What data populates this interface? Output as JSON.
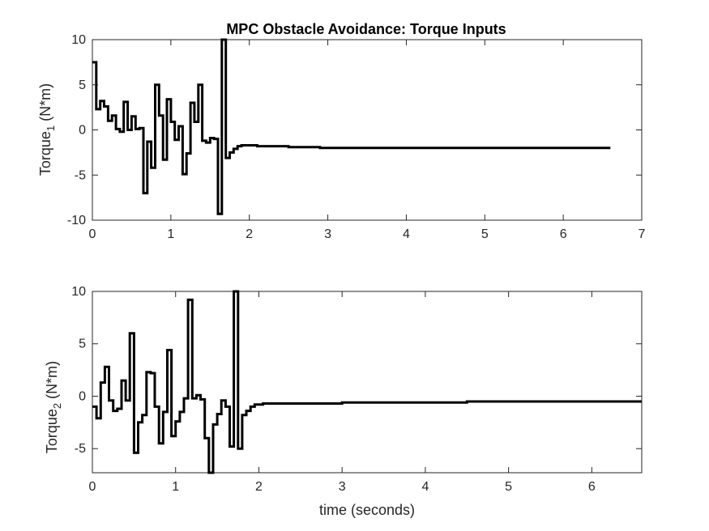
{
  "chart_data": [
    {
      "type": "line",
      "step": true,
      "title": "MPC Obstacle Avoidance: Torque Inputs",
      "ylabel_main": "Torque",
      "ylabel_sub": "1",
      "ylabel_unit": " (N*m)",
      "xlabel": "",
      "xlim": [
        0,
        7
      ],
      "ylim": [
        -10,
        10
      ],
      "xticks": [
        "0",
        "1",
        "2",
        "3",
        "4",
        "5",
        "6",
        "7"
      ],
      "yticks": [
        "-10",
        "-5",
        "0",
        "5",
        "10"
      ],
      "grid": false,
      "series": [
        {
          "color": "#000000",
          "x": [
            0,
            0.05,
            0.1,
            0.15,
            0.2,
            0.25,
            0.3,
            0.35,
            0.4,
            0.45,
            0.5,
            0.55,
            0.6,
            0.65,
            0.7,
            0.75,
            0.8,
            0.85,
            0.9,
            0.95,
            1.0,
            1.05,
            1.1,
            1.15,
            1.2,
            1.25,
            1.3,
            1.35,
            1.4,
            1.45,
            1.5,
            1.55,
            1.6,
            1.65,
            1.7,
            1.75,
            1.8,
            1.85,
            1.9,
            1.95,
            2.1,
            2.5,
            2.9,
            3.5,
            4.5,
            5.5,
            6.6
          ],
          "values": [
            7.5,
            2.3,
            3.2,
            2.6,
            1.0,
            1.6,
            0.1,
            -0.2,
            3.1,
            0.0,
            1.5,
            0.1,
            0.2,
            -7.0,
            -1.3,
            -4.2,
            5.0,
            1.6,
            -3.3,
            3.4,
            0.9,
            -1.1,
            0.4,
            -4.9,
            -2.6,
            3.0,
            0.9,
            5.0,
            -1.2,
            -1.4,
            -0.9,
            -1.0,
            -9.3,
            10.0,
            -3.1,
            -2.5,
            -2.1,
            -1.8,
            -1.7,
            -1.7,
            -1.8,
            -1.9,
            -2.0,
            -2.0,
            -2.0,
            -2.0,
            -2.0
          ]
        }
      ]
    },
    {
      "type": "line",
      "step": true,
      "title": "",
      "ylabel_main": "Torque",
      "ylabel_sub": "2",
      "ylabel_unit": " (N*m)",
      "xlabel": "time (seconds)",
      "xlim": [
        0,
        6.6
      ],
      "ylim": [
        -7.3,
        10
      ],
      "xticks": [
        "0",
        "1",
        "2",
        "3",
        "4",
        "5",
        "6"
      ],
      "yticks": [
        "-5",
        "0",
        "5",
        "10"
      ],
      "grid": false,
      "series": [
        {
          "color": "#000000",
          "x": [
            0,
            0.05,
            0.1,
            0.15,
            0.2,
            0.25,
            0.3,
            0.35,
            0.4,
            0.45,
            0.5,
            0.55,
            0.6,
            0.65,
            0.7,
            0.75,
            0.8,
            0.85,
            0.9,
            0.95,
            1.0,
            1.05,
            1.1,
            1.15,
            1.2,
            1.25,
            1.3,
            1.35,
            1.4,
            1.45,
            1.5,
            1.55,
            1.6,
            1.65,
            1.7,
            1.75,
            1.8,
            1.85,
            1.9,
            1.95,
            2.05,
            2.5,
            3.0,
            3.5,
            4.5,
            5.5,
            6.6
          ],
          "values": [
            -1.0,
            -2.1,
            1.3,
            2.8,
            -0.4,
            -1.4,
            -1.2,
            1.5,
            -0.4,
            6.0,
            -5.4,
            -2.5,
            -1.8,
            2.3,
            2.2,
            -1.0,
            -4.5,
            -1.5,
            4.4,
            -3.8,
            -2.4,
            -1.5,
            -0.2,
            9.2,
            -0.2,
            0.1,
            -0.3,
            -4.0,
            -7.3,
            -2.7,
            -1.7,
            -0.4,
            -1.0,
            -4.8,
            10.0,
            -5.0,
            -1.8,
            -1.4,
            -1.0,
            -0.8,
            -0.7,
            -0.7,
            -0.6,
            -0.6,
            -0.5,
            -0.5,
            -0.5
          ]
        }
      ]
    }
  ]
}
